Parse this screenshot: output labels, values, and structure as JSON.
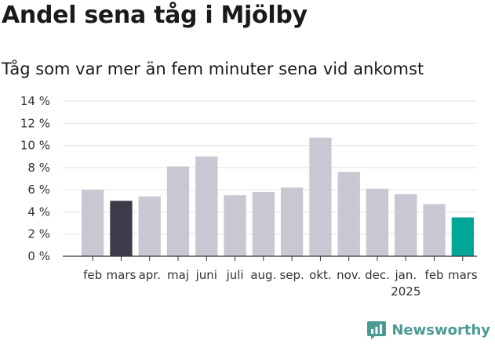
{
  "header": {
    "title": "Andel sena tåg i Mjölby",
    "subtitle": "Tåg som var mer än fem minuter sena vid ankomst"
  },
  "brand": {
    "name": "Newsworthy",
    "icon": "newsworthy-logo-icon"
  },
  "colors": {
    "bar_default": "#c8c7d2",
    "bar_previous_year": "#3d3c4a",
    "bar_current": "#00a698",
    "grid": "#e2e2e2",
    "axis": "#333333",
    "brand": "#4b9a93"
  },
  "chart_data": {
    "type": "bar",
    "categories": [
      "feb",
      "mars",
      "apr.",
      "maj",
      "juni",
      "juli",
      "aug.",
      "sep.",
      "okt.",
      "nov.",
      "dec.",
      "jan.",
      "feb",
      "mars"
    ],
    "values": [
      6.0,
      5.0,
      5.4,
      8.1,
      9.0,
      5.5,
      5.8,
      6.2,
      10.7,
      7.6,
      6.1,
      5.6,
      4.7,
      3.5
    ],
    "highlight": {
      "1": "bar_previous_year",
      "13": "bar_current"
    },
    "year_label": {
      "index": 11,
      "text": "2025"
    },
    "yticks": [
      "0 %",
      "2 %",
      "4 %",
      "6 %",
      "8 %",
      "10 %",
      "12 %",
      "14 %"
    ],
    "ylim": [
      0,
      14
    ],
    "grid": true,
    "xlabel": "",
    "ylabel": ""
  }
}
